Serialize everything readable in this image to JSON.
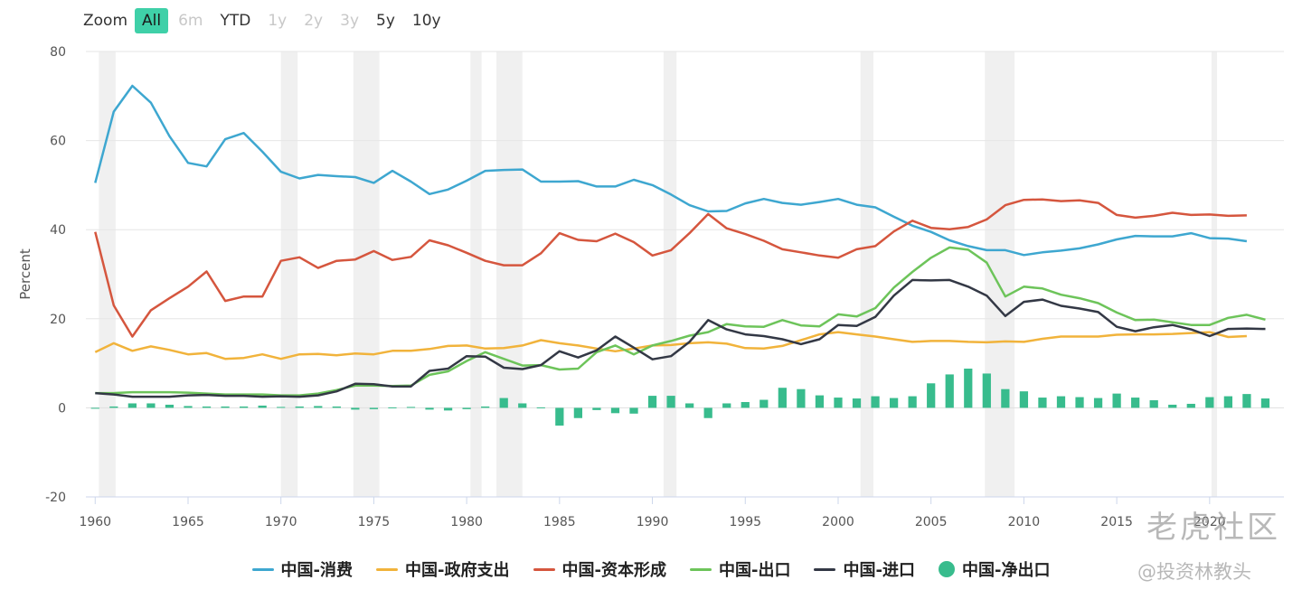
{
  "range_selector": {
    "label": "Zoom",
    "buttons": [
      {
        "label": "All",
        "state": "active"
      },
      {
        "label": "6m",
        "state": "disabled"
      },
      {
        "label": "YTD",
        "state": "normal"
      },
      {
        "label": "1y",
        "state": "disabled"
      },
      {
        "label": "2y",
        "state": "disabled"
      },
      {
        "label": "3y",
        "state": "disabled"
      },
      {
        "label": "5y",
        "state": "normal"
      },
      {
        "label": "10y",
        "state": "normal"
      }
    ]
  },
  "watermark": {
    "brand": "老虎社区",
    "handle": "@投资林教头"
  },
  "chart_data": {
    "type": "line",
    "ylabel": "Percent",
    "xlabel": "",
    "ylim": [
      -20,
      80
    ],
    "yticks": [
      -20,
      0,
      20,
      40,
      60,
      80
    ],
    "xlim": [
      1959.5,
      2024
    ],
    "xticks": [
      1960,
      1965,
      1970,
      1975,
      1980,
      1985,
      1990,
      1995,
      2000,
      2005,
      2010,
      2015,
      2020
    ],
    "grid": true,
    "legend_position": "bottom",
    "shaded_periods": [
      [
        1960.2,
        1961.1
      ],
      [
        1970.0,
        1970.9
      ],
      [
        1973.9,
        1975.3
      ],
      [
        1980.2,
        1980.8
      ],
      [
        1981.6,
        1983.0
      ],
      [
        1990.6,
        1991.3
      ],
      [
        2001.2,
        2001.9
      ],
      [
        2007.9,
        2009.5
      ],
      [
        2020.1,
        2020.4
      ]
    ],
    "x": [
      1960,
      1961,
      1962,
      1963,
      1964,
      1965,
      1966,
      1967,
      1968,
      1969,
      1970,
      1971,
      1972,
      1973,
      1974,
      1975,
      1976,
      1977,
      1978,
      1979,
      1980,
      1981,
      1982,
      1983,
      1984,
      1985,
      1986,
      1987,
      1988,
      1989,
      1990,
      1991,
      1992,
      1993,
      1994,
      1995,
      1996,
      1997,
      1998,
      1999,
      2000,
      2001,
      2002,
      2003,
      2004,
      2005,
      2006,
      2007,
      2008,
      2009,
      2010,
      2011,
      2012,
      2013,
      2014,
      2015,
      2016,
      2017,
      2018,
      2019,
      2020,
      2021,
      2022,
      2023
    ],
    "series": [
      {
        "name": "中国-消费",
        "type": "line",
        "color": "#3ea7d0",
        "values": [
          50.5,
          66.5,
          72.3,
          68.5,
          61,
          55,
          54.2,
          60.3,
          61.7,
          57.5,
          53,
          51.5,
          52.3,
          52,
          51.8,
          50.5,
          53.2,
          50.8,
          48,
          49,
          51,
          53.2,
          53.4,
          53.5,
          50.8,
          50.8,
          50.9,
          49.7,
          49.7,
          51.2,
          50,
          47.9,
          45.5,
          44.1,
          44.2,
          45.9,
          46.9,
          46,
          45.6,
          46.2,
          46.9,
          45.6,
          45,
          42.9,
          40.9,
          39.5,
          37.6,
          36.3,
          35.4,
          35.4,
          34.3,
          34.9,
          35.3,
          35.8,
          36.7,
          37.8,
          38.6,
          38.5,
          38.5,
          39.2,
          38.1,
          38,
          37.4,
          null
        ]
      },
      {
        "name": "中国-政府支出",
        "type": "line",
        "color": "#f1b33b",
        "values": [
          12.5,
          14.5,
          12.8,
          13.8,
          13,
          12,
          12.3,
          11,
          11.2,
          12,
          11,
          12,
          12.1,
          11.8,
          12.2,
          12,
          12.8,
          12.8,
          13.2,
          13.9,
          14,
          13.3,
          13.4,
          14,
          15.2,
          14.5,
          14,
          13.3,
          12.7,
          13.3,
          14,
          14.1,
          14.5,
          14.7,
          14.4,
          13.4,
          13.3,
          13.9,
          15.2,
          16.5,
          17,
          16.5,
          16,
          15.4,
          14.8,
          15,
          15,
          14.8,
          14.7,
          14.9,
          14.8,
          15.5,
          16,
          16,
          16,
          16.4,
          16.5,
          16.5,
          16.6,
          16.8,
          17,
          15.9,
          16.1,
          null
        ]
      },
      {
        "name": "中国-资本形成",
        "type": "line",
        "color": "#d5563e",
        "values": [
          39.5,
          23,
          16,
          21.9,
          24.6,
          27.2,
          30.6,
          24,
          25,
          25,
          33,
          33.8,
          31.4,
          33,
          33.3,
          35.2,
          33.2,
          33.9,
          37.6,
          36.5,
          34.8,
          33,
          32,
          32,
          34.7,
          39.2,
          37.7,
          37.4,
          39.1,
          37.2,
          34.2,
          35.4,
          39.2,
          43.5,
          40.3,
          39,
          37.5,
          35.6,
          34.9,
          34.2,
          33.7,
          35.6,
          36.3,
          39.6,
          42,
          40.4,
          40.1,
          40.6,
          42.3,
          45.5,
          46.7,
          46.8,
          46.4,
          46.6,
          46,
          43.3,
          42.7,
          43.1,
          43.8,
          43.3,
          43.4,
          43.1,
          43.2,
          null
        ]
      },
      {
        "name": "中国-出口",
        "type": "line",
        "color": "#6dc45a",
        "values": [
          3.3,
          3.3,
          3.5,
          3.5,
          3.5,
          3.4,
          3.2,
          3,
          3,
          3,
          2.8,
          2.8,
          3.2,
          4,
          5,
          5,
          4.9,
          5,
          7.4,
          8.2,
          10.5,
          12.5,
          11,
          9.5,
          9.6,
          8.6,
          8.8,
          12.5,
          14,
          12,
          14,
          15,
          16.2,
          17,
          18.8,
          18.3,
          18.2,
          19.7,
          18.5,
          18.3,
          21,
          20.5,
          22.4,
          27,
          30.5,
          33.7,
          36,
          35.5,
          32.6,
          25,
          27.2,
          26.8,
          25.4,
          24.6,
          23.5,
          21.4,
          19.7,
          19.8,
          19.2,
          18.6,
          18.6,
          20.2,
          20.9,
          19.8
        ]
      },
      {
        "name": "中国-进口",
        "type": "line",
        "color": "#333845",
        "values": [
          3.3,
          3,
          2.5,
          2.5,
          2.5,
          2.8,
          2.9,
          2.7,
          2.7,
          2.5,
          2.6,
          2.5,
          2.8,
          3.7,
          5.4,
          5.3,
          4.8,
          4.8,
          8.3,
          8.8,
          11.6,
          11.5,
          9,
          8.7,
          9.6,
          12.7,
          11.3,
          12.9,
          16,
          13.5,
          10.9,
          11.6,
          14.8,
          19.7,
          17.6,
          16.5,
          16.1,
          15.4,
          14.3,
          15.4,
          18.6,
          18.4,
          20.4,
          25.2,
          28.7,
          28.6,
          28.7,
          27.2,
          25.2,
          20.6,
          23.8,
          24.3,
          22.9,
          22.3,
          21.5,
          18.2,
          17.2,
          18.1,
          18.6,
          17.6,
          16.1,
          17.7,
          17.8,
          17.7
        ]
      },
      {
        "name": "中国-净出口",
        "type": "column",
        "color": "#38bc8d",
        "values": [
          0,
          0.3,
          1,
          1,
          0.7,
          0.4,
          0.3,
          0.3,
          0.3,
          0.5,
          0.2,
          0.3,
          0.4,
          0.3,
          -0.4,
          -0.3,
          0.1,
          0.2,
          -0.4,
          -0.6,
          -0.3,
          0.3,
          2.2,
          1,
          0.1,
          -4,
          -2.3,
          -0.5,
          -1.2,
          -1.3,
          2.7,
          2.7,
          1,
          -2.3,
          1,
          1.3,
          1.8,
          4.5,
          4.2,
          2.8,
          2.3,
          2.1,
          2.6,
          2.2,
          2.6,
          5.5,
          7.5,
          8.8,
          7.7,
          4.2,
          3.7,
          2.3,
          2.6,
          2.4,
          2.2,
          3.2,
          2.3,
          1.7,
          0.7,
          0.9,
          2.4,
          2.6,
          3.1,
          2.1
        ]
      }
    ]
  }
}
